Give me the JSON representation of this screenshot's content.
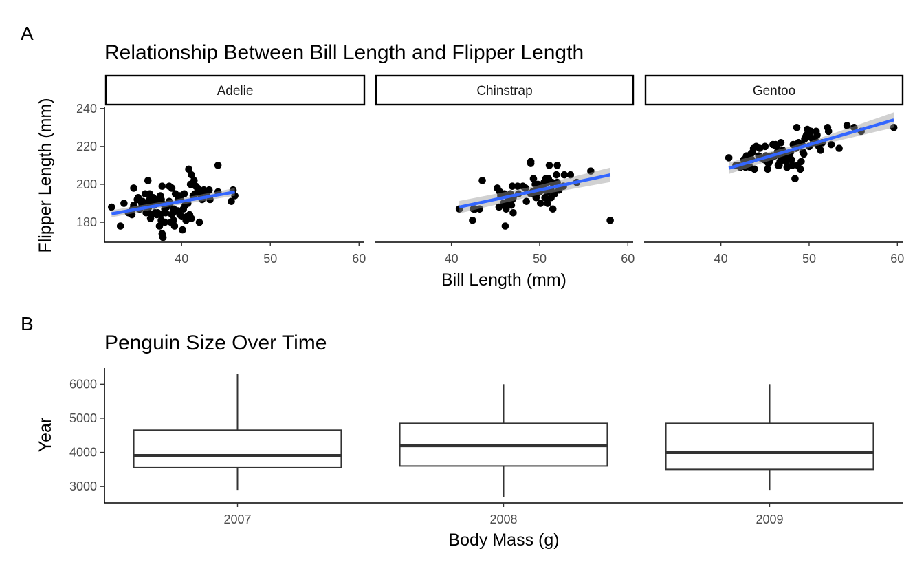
{
  "panel_a": {
    "tag": "A",
    "title": "Relationship Between Bill Length and Flipper Length",
    "xlabel": "Bill Length (mm)",
    "ylabel": "Flipper Length (mm)"
  },
  "panel_b": {
    "tag": "B",
    "title": "Penguin Size Over Time",
    "xlabel": "Body Mass (g)",
    "ylabel": "Year"
  },
  "colors": {
    "fit_line": "#3366FF",
    "ribbon": "#999999",
    "points": "#000000",
    "box_stroke": "#333333"
  },
  "chart_data": [
    {
      "type": "scatter",
      "title": "Relationship Between Bill Length and Flipper Length",
      "xlabel": "Bill Length (mm)",
      "ylabel": "Flipper Length (mm)",
      "xlim": [
        31.3,
        60.6
      ],
      "ylim": [
        169.5,
        241
      ],
      "xticks": [
        40,
        50,
        60
      ],
      "yticks": [
        180,
        200,
        220,
        240
      ],
      "facets": [
        "Adelie",
        "Chinstrap",
        "Gentoo"
      ],
      "grid": false,
      "series": [
        {
          "name": "Adelie",
          "fit": {
            "x": [
              32.1,
              46.0
            ],
            "y": [
              184.5,
              196.0
            ],
            "ribbon_halfwidth": [
              1.6,
              2.0
            ]
          },
          "points": [
            [
              32.1,
              188
            ],
            [
              33.1,
              178
            ],
            [
              33.5,
              190
            ],
            [
              34.0,
              185
            ],
            [
              34.4,
              184
            ],
            [
              34.5,
              187
            ],
            [
              34.6,
              198
            ],
            [
              34.6,
              189
            ],
            [
              35.0,
              192
            ],
            [
              35.1,
              193
            ],
            [
              35.2,
              187
            ],
            [
              35.3,
              187
            ],
            [
              35.5,
              190
            ],
            [
              35.6,
              191
            ],
            [
              35.7,
              189
            ],
            [
              35.9,
              190
            ],
            [
              35.9,
              195
            ],
            [
              36.0,
              185
            ],
            [
              36.0,
              190
            ],
            [
              36.2,
              187
            ],
            [
              36.2,
              202
            ],
            [
              36.3,
              188
            ],
            [
              36.4,
              195
            ],
            [
              36.5,
              182
            ],
            [
              36.6,
              184
            ],
            [
              36.6,
              190
            ],
            [
              36.7,
              193
            ],
            [
              36.8,
              193
            ],
            [
              36.9,
              189
            ],
            [
              37.0,
              185
            ],
            [
              37.2,
              184
            ],
            [
              37.2,
              190
            ],
            [
              37.3,
              192
            ],
            [
              37.5,
              178
            ],
            [
              37.6,
              184
            ],
            [
              37.6,
              194
            ],
            [
              37.7,
              181
            ],
            [
              37.7,
              192
            ],
            [
              37.8,
              190
            ],
            [
              37.8,
              174
            ],
            [
              37.8,
              199
            ],
            [
              37.9,
              172
            ],
            [
              38.1,
              180
            ],
            [
              38.1,
              187
            ],
            [
              38.2,
              185
            ],
            [
              38.3,
              188
            ],
            [
              38.5,
              190
            ],
            [
              38.6,
              191
            ],
            [
              38.7,
              190
            ],
            [
              38.8,
              180
            ],
            [
              38.9,
              184
            ],
            [
              38.9,
              198
            ],
            [
              39.0,
              185
            ],
            [
              39.1,
              181
            ],
            [
              39.1,
              187
            ],
            [
              39.2,
              178
            ],
            [
              39.3,
              195
            ],
            [
              39.5,
              186
            ],
            [
              39.6,
              192
            ],
            [
              39.7,
              193
            ],
            [
              39.8,
              184
            ],
            [
              39.8,
              194
            ],
            [
              40.0,
              183
            ],
            [
              40.1,
              176
            ],
            [
              40.2,
              187
            ],
            [
              40.3,
              195
            ],
            [
              40.5,
              181
            ],
            [
              40.6,
              183
            ],
            [
              40.7,
              190
            ],
            [
              40.8,
              208
            ],
            [
              40.9,
              184
            ],
            [
              41.0,
              200
            ],
            [
              41.1,
              182
            ],
            [
              41.1,
              205
            ],
            [
              41.3,
              194
            ],
            [
              41.4,
              202
            ],
            [
              41.5,
              195
            ],
            [
              41.6,
              199
            ],
            [
              41.8,
              198
            ],
            [
              42.0,
              180
            ],
            [
              42.1,
              195
            ],
            [
              42.2,
              196
            ],
            [
              42.3,
              192
            ],
            [
              42.5,
              197
            ],
            [
              42.7,
              196
            ],
            [
              42.8,
              195
            ],
            [
              42.9,
              196
            ],
            [
              43.1,
              197
            ],
            [
              43.2,
              192
            ],
            [
              44.1,
              210
            ],
            [
              44.1,
              196
            ],
            [
              45.6,
              191
            ],
            [
              45.8,
              197
            ],
            [
              46.0,
              194
            ],
            [
              39.6,
              186
            ],
            [
              38.6,
              199
            ],
            [
              37.3,
              185
            ],
            [
              36.4,
              192
            ],
            [
              40.4,
              189
            ],
            [
              39.9,
              192
            ]
          ]
        },
        {
          "name": "Chinstrap",
          "fit": {
            "x": [
              40.9,
              58.0
            ],
            "y": [
              188.0,
              205.0
            ],
            "ribbon_halfwidth": [
              2.5,
              3.8
            ]
          },
          "points": [
            [
              40.9,
              187
            ],
            [
              42.4,
              181
            ],
            [
              42.5,
              187
            ],
            [
              42.7,
              187
            ],
            [
              43.2,
              187
            ],
            [
              43.5,
              202
            ],
            [
              45.2,
              198
            ],
            [
              45.4,
              188
            ],
            [
              45.5,
              196
            ],
            [
              45.6,
              194
            ],
            [
              45.7,
              195
            ],
            [
              45.9,
              190
            ],
            [
              46.0,
              195
            ],
            [
              46.1,
              178
            ],
            [
              46.2,
              187
            ],
            [
              46.4,
              190
            ],
            [
              46.5,
              192
            ],
            [
              46.6,
              193
            ],
            [
              46.7,
              195
            ],
            [
              46.8,
              189
            ],
            [
              46.9,
              192
            ],
            [
              47.0,
              185
            ],
            [
              47.5,
              199
            ],
            [
              47.6,
              195
            ],
            [
              48.1,
              199
            ],
            [
              48.5,
              191
            ],
            [
              49.0,
              195
            ],
            [
              49.0,
              212
            ],
            [
              49.0,
              211
            ],
            [
              49.2,
              196
            ],
            [
              49.3,
              203
            ],
            [
              49.5,
              196
            ],
            [
              49.6,
              193
            ],
            [
              49.7,
              195
            ],
            [
              49.8,
              197
            ],
            [
              50.0,
              196
            ],
            [
              50.1,
              190
            ],
            [
              50.2,
              198
            ],
            [
              50.3,
              197
            ],
            [
              50.4,
              198
            ],
            [
              50.5,
              201
            ],
            [
              50.6,
              193
            ],
            [
              50.7,
              203
            ],
            [
              50.8,
              201
            ],
            [
              50.9,
              196
            ],
            [
              51.0,
              203
            ],
            [
              51.3,
              193
            ],
            [
              51.3,
              197
            ],
            [
              51.4,
              201
            ],
            [
              51.5,
              187
            ],
            [
              51.7,
              195
            ],
            [
              51.9,
              205
            ],
            [
              52.0,
              210
            ],
            [
              52.0,
              201
            ],
            [
              52.2,
              197
            ],
            [
              52.7,
              199
            ],
            [
              52.8,
              205
            ],
            [
              53.5,
              205
            ],
            [
              54.2,
              201
            ],
            [
              55.8,
              207
            ],
            [
              58.0,
              181
            ],
            [
              51.1,
              210
            ],
            [
              50.9,
              190
            ],
            [
              49.8,
              200
            ],
            [
              49.5,
              200
            ],
            [
              48.4,
              198
            ],
            [
              47.0,
              193
            ],
            [
              46.9,
              199
            ]
          ]
        },
        {
          "name": "Gentoo",
          "fit": {
            "x": [
              40.9,
              59.6
            ],
            "y": [
              208.5,
              234.0
            ],
            "ribbon_halfwidth": [
              1.6,
              4.0
            ]
          },
          "points": [
            [
              40.9,
              214
            ],
            [
              41.7,
              210
            ],
            [
              42.0,
              210
            ],
            [
              42.2,
              209
            ],
            [
              42.6,
              213
            ],
            [
              42.7,
              211
            ],
            [
              42.8,
              209
            ],
            [
              42.9,
              215
            ],
            [
              43.2,
              213
            ],
            [
              43.3,
              209
            ],
            [
              43.4,
              216
            ],
            [
              43.5,
              213
            ],
            [
              43.6,
              217
            ],
            [
              43.8,
              208
            ],
            [
              44.0,
              220
            ],
            [
              44.4,
              219
            ],
            [
              44.5,
              214
            ],
            [
              44.9,
              213
            ],
            [
              45.0,
              220
            ],
            [
              45.1,
              215
            ],
            [
              45.2,
              212
            ],
            [
              45.3,
              208
            ],
            [
              45.4,
              211
            ],
            [
              45.5,
              212
            ],
            [
              45.7,
              214
            ],
            [
              45.8,
              215
            ],
            [
              46.1,
              215
            ],
            [
              46.2,
              221
            ],
            [
              46.4,
              217
            ],
            [
              46.5,
              210
            ],
            [
              46.6,
              210
            ],
            [
              46.7,
              212
            ],
            [
              46.8,
              215
            ],
            [
              46.9,
              216
            ],
            [
              47.2,
              214
            ],
            [
              47.3,
              216
            ],
            [
              47.4,
              212
            ],
            [
              47.5,
              209
            ],
            [
              47.6,
              215
            ],
            [
              47.7,
              216
            ],
            [
              47.8,
              215
            ],
            [
              48.1,
              210
            ],
            [
              48.2,
              221
            ],
            [
              48.4,
              203
            ],
            [
              48.5,
              219
            ],
            [
              48.6,
              230
            ],
            [
              48.7,
              210
            ],
            [
              48.8,
              222
            ],
            [
              49.0,
              208
            ],
            [
              49.1,
              212
            ],
            [
              49.2,
              221
            ],
            [
              49.3,
              217
            ],
            [
              49.4,
              216
            ],
            [
              49.5,
              224
            ],
            [
              49.6,
              225
            ],
            [
              49.8,
              229
            ],
            [
              50.0,
              220
            ],
            [
              50.1,
              225
            ],
            [
              50.2,
              228
            ],
            [
              50.4,
              224
            ],
            [
              50.5,
              222
            ],
            [
              50.7,
              223
            ],
            [
              50.8,
              228
            ],
            [
              51.1,
              220
            ],
            [
              51.3,
              218
            ],
            [
              51.5,
              222
            ],
            [
              52.1,
              230
            ],
            [
              52.2,
              228
            ],
            [
              52.5,
              221
            ],
            [
              53.4,
              219
            ],
            [
              54.3,
              231
            ],
            [
              55.1,
              230
            ],
            [
              55.9,
              228
            ],
            [
              59.6,
              230
            ],
            [
              45.6,
              214
            ],
            [
              46.3,
              220
            ],
            [
              47.0,
              218
            ],
            [
              48.0,
              213
            ],
            [
              44.3,
              215
            ],
            [
              45.9,
              221
            ],
            [
              46.8,
              222
            ],
            [
              43.7,
              219
            ],
            [
              47.9,
              217
            ],
            [
              49.7,
              226
            ],
            [
              50.9,
              226
            ]
          ]
        }
      ]
    },
    {
      "type": "box",
      "title": "Penguin Size Over Time",
      "xlabel": "Body Mass (g)",
      "ylabel": "Year",
      "categories": [
        "2007",
        "2008",
        "2009"
      ],
      "ylim": [
        2520,
        6470
      ],
      "yticks": [
        3000,
        4000,
        5000,
        6000
      ],
      "grid": false,
      "boxes": [
        {
          "min": 2900,
          "q1": 3550,
          "median": 3900,
          "q3": 4650,
          "max": 6300
        },
        {
          "min": 2700,
          "q1": 3600,
          "median": 4200,
          "q3": 4850,
          "max": 6000
        },
        {
          "min": 2900,
          "q1": 3500,
          "median": 4000,
          "q3": 4850,
          "max": 6000
        }
      ]
    }
  ]
}
